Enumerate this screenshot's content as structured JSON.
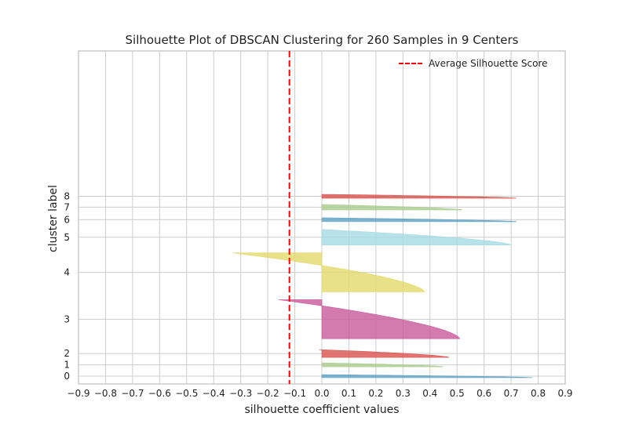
{
  "chart_data": {
    "type": "silhouette",
    "title": "Silhouette Plot of DBSCAN Clustering for 260 Samples in 9 Centers",
    "xlabel": "silhouette coefficient values",
    "ylabel": "cluster label",
    "xlim": [
      -0.9,
      0.9
    ],
    "xticks": [
      "−0.9",
      "−0.8",
      "−0.7",
      "−0.6",
      "−0.5",
      "−0.4",
      "−0.3",
      "−0.2",
      "−0.1",
      "0.0",
      "0.1",
      "0.2",
      "0.3",
      "0.4",
      "0.5",
      "0.6",
      "0.7",
      "0.8",
      "0.9"
    ],
    "average_silhouette_score": -0.12,
    "legend": {
      "label": "Average Silhouette Score",
      "placement": "top-right"
    },
    "grid": true,
    "clusters": [
      {
        "label": "0",
        "color": "#5fa3c4",
        "min": 0.0,
        "max": 0.78,
        "y_from": 0,
        "y_to": 4
      },
      {
        "label": "1",
        "color": "#a9cc8c",
        "min": 0.0,
        "max": 0.45,
        "y_from": 14,
        "y_to": 19
      },
      {
        "label": "2",
        "color": "#d9534f",
        "min": -0.01,
        "max": 0.47,
        "y_from": 26,
        "y_to": 36
      },
      {
        "label": "3",
        "color": "#c8599a",
        "min": -0.16,
        "max": 0.51,
        "y_from": 50,
        "y_to": 100
      },
      {
        "label": "4",
        "color": "#e3d96a",
        "min": -0.33,
        "max": 0.38,
        "y_from": 110,
        "y_to": 160
      },
      {
        "label": "5",
        "color": "#a6dbe3",
        "min": 0.0,
        "max": 0.7,
        "y_from": 170,
        "y_to": 190
      },
      {
        "label": "6",
        "color": "#5fa3c4",
        "min": 0.0,
        "max": 0.72,
        "y_from": 200,
        "y_to": 205
      },
      {
        "label": "7",
        "color": "#a9cc8c",
        "min": 0.0,
        "max": 0.52,
        "y_from": 215,
        "y_to": 222
      },
      {
        "label": "8",
        "color": "#d9534f",
        "min": 0.0,
        "max": 0.72,
        "y_from": 230,
        "y_to": 235
      }
    ]
  },
  "colors": {
    "grid": "#cccccc",
    "axes": "#cccccc",
    "avg_line": "#ff0000"
  }
}
